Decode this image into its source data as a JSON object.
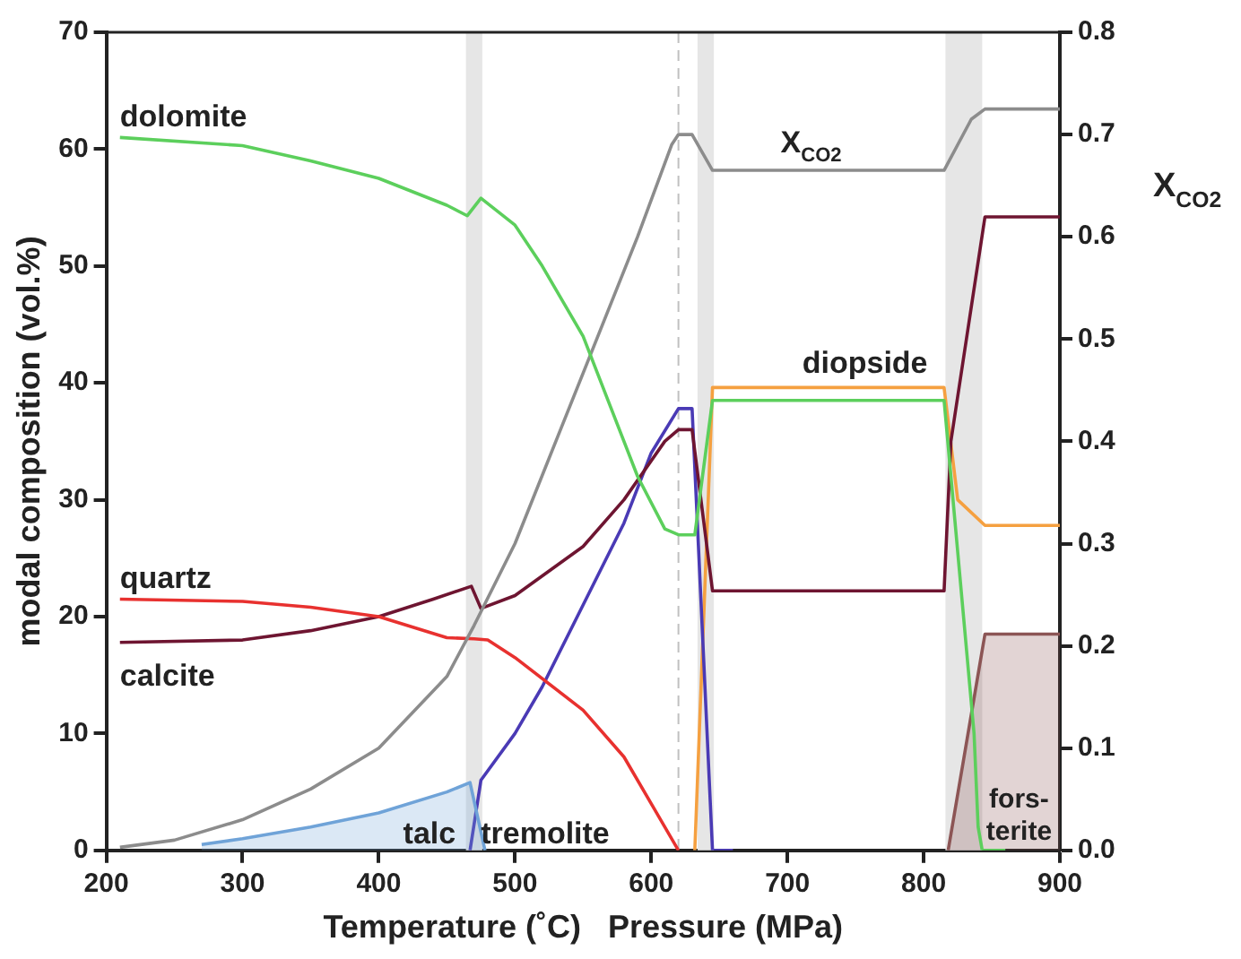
{
  "chart_data": {
    "type": "line",
    "xlabel": "Temperature (˚C)   Pressure (MPa)",
    "ylabel": "modal composition (vol.%)",
    "y2label": "X$_{CO2}$",
    "xlim": [
      200,
      900
    ],
    "xticks": [
      200,
      300,
      400,
      500,
      600,
      700,
      800,
      900
    ],
    "ylim": [
      0,
      70
    ],
    "yticks": [
      0,
      10,
      20,
      30,
      40,
      50,
      60,
      70
    ],
    "y2lim": [
      0,
      0.8
    ],
    "y2ticks": [
      {
        "value": 0,
        "label": "0.0"
      },
      0.1,
      0.2,
      0.3,
      0.4,
      0.5,
      0.6,
      0.7,
      0.8
    ],
    "grid": false,
    "legend": false,
    "marker": "none",
    "line_style": "solid",
    "bands": [
      {
        "axis": "x",
        "from": 464,
        "to": 476,
        "color": "#e6e6e6"
      },
      {
        "axis": "x",
        "from": 634,
        "to": 646,
        "color": "#e6e6e6"
      },
      {
        "axis": "x",
        "from": 816,
        "to": 843,
        "color": "#e6e6e6"
      }
    ],
    "ref_lines": [
      {
        "axis": "x",
        "value": 620,
        "color": "#c0c0c0",
        "line_style": "dashed"
      }
    ],
    "series": [
      {
        "name": "dolomite",
        "color": "#5ccf5c",
        "x": [
          210,
          300,
          350,
          400,
          450,
          465,
          475,
          500,
          520,
          550,
          570,
          590,
          610,
          620,
          632,
          645,
          815,
          837,
          840,
          843,
          860
        ],
        "values": [
          61,
          60.3,
          59,
          57.5,
          55.2,
          54.3,
          55.8,
          53.5,
          50,
          44,
          38,
          32,
          27.5,
          27,
          27,
          38.5,
          38.5,
          10,
          2,
          0,
          0
        ]
      },
      {
        "name": "X$_{CO2}$",
        "color": "#8c8c8c",
        "axis": "y2",
        "x": [
          210,
          250,
          300,
          350,
          400,
          450,
          470,
          500,
          530,
          560,
          590,
          615,
          620,
          630,
          645,
          815,
          825,
          835,
          845,
          900
        ],
        "values": [
          0.003,
          0.01,
          0.03,
          0.06,
          0.1,
          0.17,
          0.22,
          0.3,
          0.4,
          0.5,
          0.6,
          0.69,
          0.7,
          0.7,
          0.665,
          0.665,
          0.69,
          0.715,
          0.725,
          0.725
        ]
      },
      {
        "name": "quartz",
        "color": "#e8312f",
        "x": [
          210,
          300,
          350,
          400,
          450,
          470,
          480,
          500,
          550,
          580,
          600,
          620
        ],
        "values": [
          21.5,
          21.3,
          20.8,
          20,
          18.2,
          18.1,
          18,
          16.5,
          12,
          8,
          4,
          0
        ]
      },
      {
        "name": "calcite",
        "color": "#6e1531",
        "x": [
          210,
          300,
          350,
          400,
          440,
          468,
          475,
          500,
          550,
          580,
          610,
          620,
          630,
          645,
          815,
          820,
          845,
          900
        ],
        "values": [
          17.8,
          18,
          18.8,
          20,
          21.5,
          22.6,
          20.7,
          21.8,
          26,
          30,
          35,
          36,
          36,
          22.2,
          22.2,
          35,
          54.2,
          54.2
        ]
      },
      {
        "name": "talc",
        "type": "area",
        "color": "#6fa3d8",
        "x": [
          270,
          300,
          350,
          400,
          450,
          467,
          478
        ],
        "values": [
          0.5,
          1,
          2,
          3.2,
          5,
          5.8,
          0
        ]
      },
      {
        "name": "tremolite",
        "color": "#4a3ab5",
        "x": [
          467,
          475,
          500,
          520,
          550,
          580,
          600,
          620,
          630,
          645,
          660
        ],
        "values": [
          0,
          6,
          10,
          14,
          21,
          28,
          34,
          37.8,
          37.8,
          0,
          0
        ]
      },
      {
        "name": "diopside",
        "color": "#f5a040",
        "x": [
          632,
          645,
          815,
          825,
          845,
          900
        ],
        "values": [
          0,
          39.6,
          39.6,
          30,
          27.8,
          27.8
        ]
      },
      {
        "name": "fors-terite",
        "type": "area",
        "color": "#8c5555",
        "x": [
          818,
          845,
          900
        ],
        "values": [
          0,
          18.5,
          18.5
        ]
      }
    ]
  }
}
